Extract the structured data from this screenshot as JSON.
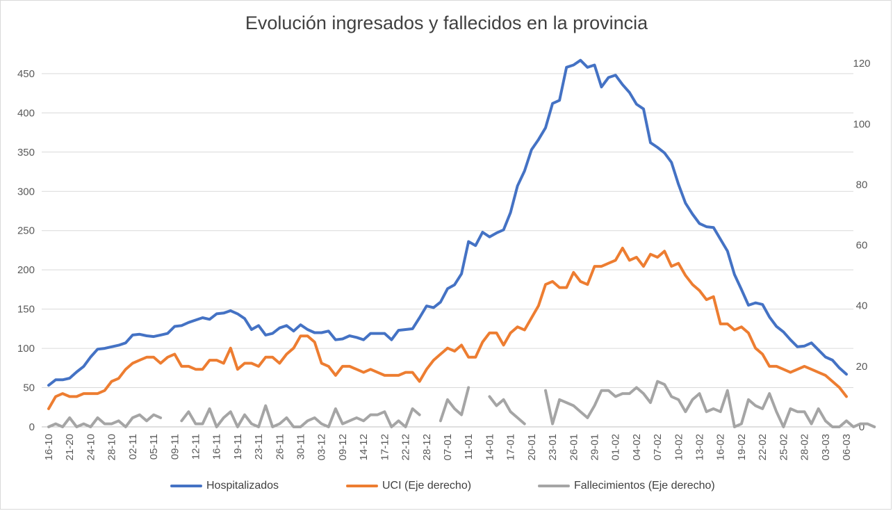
{
  "chart_data": {
    "type": "line",
    "title": "Evolución ingresados y fallecidos en la provincia",
    "x_tick_labels": [
      "16-10",
      "21-20",
      "24-10",
      "28-10",
      "02-11",
      "05-11",
      "09-11",
      "12-11",
      "16-11",
      "19-11",
      "23-11",
      "26-11",
      "30-11",
      "03-12",
      "09-12",
      "14-12",
      "17-12",
      "22-12",
      "28-12",
      "07-01",
      "11-01",
      "14-01",
      "17-01",
      "20-01",
      "23-01",
      "26-01",
      "29-01",
      "01-02",
      "04-02",
      "07-02",
      "10-02",
      "13-02",
      "16-02",
      "19-02",
      "22-02",
      "25-02",
      "28-02",
      "03-03",
      "06-03"
    ],
    "y_left": {
      "min": 0,
      "max": 480,
      "ticks": [
        0,
        50,
        100,
        150,
        200,
        250,
        300,
        350,
        400,
        450
      ]
    },
    "y_right": {
      "min": 0,
      "max": 124.4,
      "ticks": [
        0,
        20,
        40,
        60,
        80,
        100,
        120
      ]
    },
    "grid": true,
    "legend_position": "bottom",
    "series": [
      {
        "name": "Hospitalizados",
        "axis": "left",
        "color": "#4472C4",
        "values": [
          53,
          60,
          60,
          62,
          70,
          77,
          89,
          99,
          100,
          102,
          104,
          107,
          117,
          118,
          116,
          115,
          117,
          119,
          128,
          129,
          133,
          136,
          139,
          137,
          144,
          145,
          148,
          144,
          138,
          124,
          129,
          117,
          119,
          126,
          129,
          122,
          130,
          124,
          120,
          120,
          122,
          111,
          112,
          116,
          114,
          111,
          119,
          119,
          119,
          111,
          123,
          124,
          125,
          139,
          154,
          152,
          159,
          176,
          181,
          195,
          236,
          231,
          248,
          242,
          247,
          251,
          273,
          307,
          326,
          353,
          366,
          381,
          412,
          416,
          458,
          461,
          467,
          458,
          461,
          433,
          445,
          448,
          436,
          426,
          411,
          405,
          362,
          356,
          349,
          337,
          309,
          285,
          271,
          259,
          255,
          254,
          239,
          224,
          194,
          175,
          155,
          158,
          156,
          140,
          128,
          121,
          111,
          102,
          103,
          107,
          98,
          89,
          85,
          75,
          67
        ]
      },
      {
        "name": "UCI (Eje derecho)",
        "axis": "right",
        "color": "#ED7D31",
        "values": [
          6,
          10,
          11,
          10,
          10,
          11,
          11,
          11,
          12,
          15,
          16,
          19,
          21,
          22,
          23,
          23,
          21,
          23,
          24,
          20,
          20,
          19,
          19,
          22,
          22,
          21,
          26,
          19,
          21,
          21,
          20,
          23,
          23,
          21,
          24,
          26,
          30,
          30,
          28,
          21,
          20,
          17,
          20,
          20,
          19,
          18,
          19,
          18,
          17,
          17,
          17,
          18,
          18,
          15,
          19,
          22,
          24,
          26,
          25,
          27,
          23,
          23,
          28,
          31,
          31,
          27,
          31,
          33,
          32,
          36,
          40,
          47,
          48,
          46,
          46,
          51,
          48,
          47,
          53,
          53,
          54,
          55,
          59,
          55,
          56,
          53,
          57,
          56,
          58,
          53,
          54,
          50,
          47,
          45,
          42,
          43,
          34,
          34,
          32,
          33,
          31,
          26,
          24,
          20,
          20,
          19,
          18,
          19,
          20,
          19,
          18,
          17,
          15,
          13,
          10
        ]
      },
      {
        "name": "Fallecimientos (Eje derecho)",
        "axis": "right",
        "color": "#A5A5A5",
        "values": [
          0,
          1,
          0,
          3,
          0,
          1,
          0,
          3,
          1,
          1,
          2,
          0,
          3,
          4,
          2,
          4,
          3,
          null,
          null,
          2,
          5,
          1,
          1,
          6,
          0,
          3,
          5,
          0,
          4,
          1,
          0,
          7,
          0,
          1,
          3,
          0,
          0,
          2,
          3,
          1,
          0,
          6,
          1,
          2,
          3,
          2,
          4,
          4,
          5,
          0,
          2,
          0,
          6,
          4,
          null,
          null,
          2,
          9,
          6,
          4,
          13,
          null,
          null,
          10,
          7,
          9,
          5,
          3,
          1,
          null,
          null,
          12,
          1,
          9,
          8,
          7,
          5,
          3,
          7,
          12,
          12,
          10,
          11,
          11,
          13,
          11,
          8,
          15,
          14,
          10,
          9,
          5,
          9,
          11,
          5,
          6,
          5,
          12,
          0,
          1,
          9,
          7,
          6,
          11,
          5,
          0,
          6,
          5,
          5,
          1,
          6,
          2,
          0,
          0,
          2,
          0,
          1,
          1,
          0
        ]
      }
    ]
  }
}
